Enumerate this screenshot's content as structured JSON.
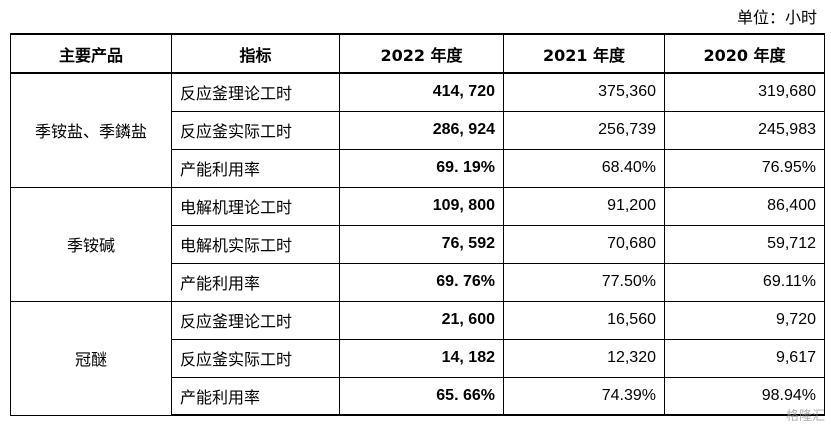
{
  "unit_note": "单位：小时",
  "headers": {
    "product": "主要产品",
    "metric": "指标",
    "y2022": "2022 年度",
    "y2021": "2021 年度",
    "y2020": "2020 年度"
  },
  "groups": [
    {
      "name": "季铵盐、季鏻盐",
      "rows": [
        {
          "metric": "反应釜理论工时",
          "y2022": "414, 720",
          "y2021": "375,360",
          "y2020": "319,680"
        },
        {
          "metric": "反应釜实际工时",
          "y2022": "286, 924",
          "y2021": "256,739",
          "y2020": "245,983"
        },
        {
          "metric": "产能利用率",
          "y2022": "69. 19%",
          "y2021": "68.40%",
          "y2020": "76.95%"
        }
      ]
    },
    {
      "name": "季铵碱",
      "rows": [
        {
          "metric": "电解机理论工时",
          "y2022": "109, 800",
          "y2021": "91,200",
          "y2020": "86,400"
        },
        {
          "metric": "电解机实际工时",
          "y2022": "76, 592",
          "y2021": "70,680",
          "y2020": "59,712"
        },
        {
          "metric": "产能利用率",
          "y2022": "69. 76%",
          "y2021": "77.50%",
          "y2020": "69.11%"
        }
      ]
    },
    {
      "name": "冠醚",
      "rows": [
        {
          "metric": "反应釜理论工时",
          "y2022": "21, 600",
          "y2021": "16,560",
          "y2020": "9,720"
        },
        {
          "metric": "反应釜实际工时",
          "y2022": "14, 182",
          "y2021": "12,320",
          "y2020": "9,617"
        },
        {
          "metric": "产能利用率",
          "y2022": "65. 66%",
          "y2021": "74.39%",
          "y2020": "98.94%"
        }
      ]
    }
  ],
  "watermark": "格隆汇"
}
